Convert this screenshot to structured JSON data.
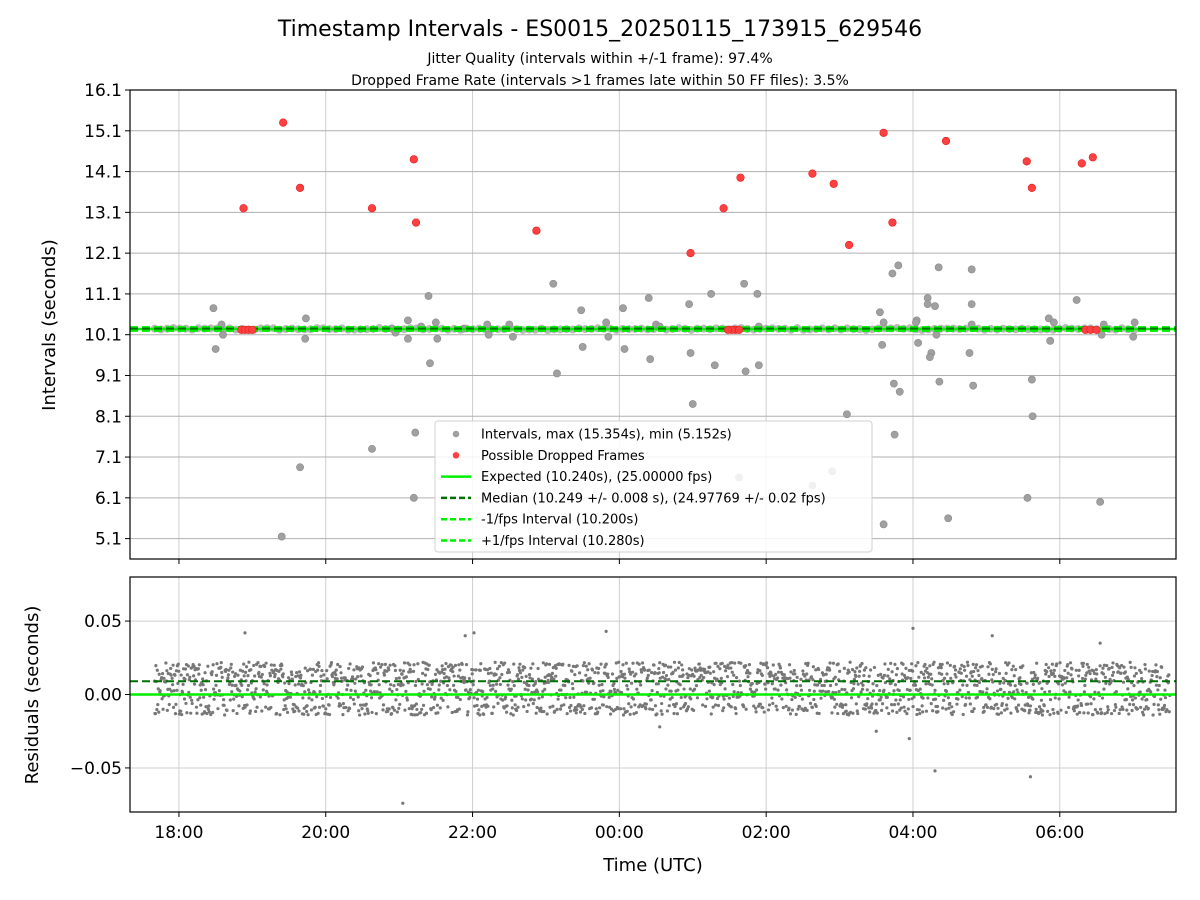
{
  "chart_data": [
    {
      "type": "scatter",
      "title": "Timestamp Intervals - ES0015_20250115_173915_629546",
      "subtitle_1": "Jitter Quality (intervals within +/-1 frame): 97.4%",
      "subtitle_2": "Dropped Frame Rate (intervals >1 frames late within 50 FF files): 3.5%",
      "ylabel": "Intervals (seconds)",
      "ylim": [
        4.6,
        16.1
      ],
      "y_ticks": [
        "5.1",
        "6.1",
        "7.1",
        "8.1",
        "9.1",
        "10.1",
        "11.1",
        "12.1",
        "13.1",
        "14.1",
        "15.1",
        "16.1"
      ],
      "grid": true,
      "legend_position": "lower-center",
      "series": [
        {
          "name": "Intervals, max (15.354s), min (5.152s)",
          "color": "#a0a0a0",
          "points": [
            [
              18.47,
              10.75
            ],
            [
              18.5,
              9.75
            ],
            [
              18.58,
              10.35
            ],
            [
              18.6,
              10.1
            ],
            [
              19.4,
              5.15
            ],
            [
              19.65,
              6.85
            ],
            [
              19.72,
              10.0
            ],
            [
              19.73,
              10.5
            ],
            [
              20.63,
              7.3
            ],
            [
              20.9,
              10.25
            ],
            [
              20.95,
              10.15
            ],
            [
              21.12,
              10.45
            ],
            [
              21.12,
              10.0
            ],
            [
              21.2,
              6.1
            ],
            [
              21.22,
              7.7
            ],
            [
              21.3,
              10.3
            ],
            [
              21.4,
              11.05
            ],
            [
              21.42,
              9.4
            ],
            [
              21.5,
              10.4
            ],
            [
              21.52,
              10.0
            ],
            [
              21.88,
              10.25
            ],
            [
              22.2,
              10.35
            ],
            [
              22.22,
              10.1
            ],
            [
              22.5,
              10.35
            ],
            [
              22.55,
              10.05
            ],
            [
              23.1,
              11.35
            ],
            [
              23.15,
              9.15
            ],
            [
              23.48,
              10.7
            ],
            [
              23.5,
              9.8
            ],
            [
              23.82,
              10.4
            ],
            [
              23.85,
              10.05
            ],
            [
              24.05,
              10.75
            ],
            [
              24.07,
              9.75
            ],
            [
              24.4,
              11.0
            ],
            [
              24.42,
              9.5
            ],
            [
              24.5,
              10.35
            ],
            [
              24.55,
              10.3
            ],
            [
              24.95,
              10.85
            ],
            [
              24.97,
              9.65
            ],
            [
              25.0,
              8.4
            ],
            [
              25.3,
              9.35
            ],
            [
              25.25,
              11.1
            ],
            [
              25.63,
              6.6
            ],
            [
              25.7,
              11.35
            ],
            [
              25.72,
              9.2
            ],
            [
              25.88,
              11.1
            ],
            [
              25.9,
              9.35
            ],
            [
              25.9,
              10.3
            ],
            [
              26.63,
              6.4
            ],
            [
              26.9,
              6.75
            ],
            [
              27.1,
              8.15
            ],
            [
              27.55,
              10.65
            ],
            [
              27.58,
              9.85
            ],
            [
              27.6,
              10.4
            ],
            [
              27.6,
              5.45
            ],
            [
              27.72,
              11.6
            ],
            [
              27.74,
              8.9
            ],
            [
              27.75,
              7.65
            ],
            [
              27.8,
              11.8
            ],
            [
              27.82,
              8.7
            ],
            [
              28.05,
              10.45
            ],
            [
              28.07,
              9.9
            ],
            [
              28.04,
              10.4
            ],
            [
              28.2,
              11.0
            ],
            [
              28.2,
              10.85
            ],
            [
              28.25,
              9.65
            ],
            [
              28.23,
              9.55
            ],
            [
              28.3,
              10.8
            ],
            [
              28.32,
              10.1
            ],
            [
              28.35,
              11.75
            ],
            [
              28.36,
              8.95
            ],
            [
              28.48,
              5.6
            ],
            [
              28.77,
              9.65
            ],
            [
              28.8,
              11.7
            ],
            [
              28.82,
              8.85
            ],
            [
              28.8,
              10.35
            ],
            [
              28.8,
              10.85
            ],
            [
              29.56,
              6.1
            ],
            [
              29.62,
              9.0
            ],
            [
              29.63,
              8.1
            ],
            [
              29.85,
              10.5
            ],
            [
              29.87,
              9.95
            ],
            [
              29.92,
              10.4
            ],
            [
              30.23,
              10.95
            ],
            [
              30.55,
              6.0
            ],
            [
              30.57,
              10.1
            ],
            [
              30.6,
              10.35
            ],
            [
              31.0,
              10.05
            ],
            [
              31.02,
              10.4
            ]
          ]
        },
        {
          "name": "Possible Dropped Frames",
          "color": "#ff4040",
          "points": [
            [
              18.88,
              13.2
            ],
            [
              18.85,
              10.22
            ],
            [
              18.9,
              10.22
            ],
            [
              18.95,
              10.22
            ],
            [
              19.0,
              10.22
            ],
            [
              19.42,
              15.3
            ],
            [
              19.65,
              13.7
            ],
            [
              20.63,
              13.2
            ],
            [
              21.2,
              14.4
            ],
            [
              21.23,
              12.85
            ],
            [
              22.87,
              12.65
            ],
            [
              24.97,
              12.1
            ],
            [
              25.42,
              13.2
            ],
            [
              25.58,
              10.22
            ],
            [
              25.63,
              10.22
            ],
            [
              25.53,
              10.22
            ],
            [
              25.48,
              10.22
            ],
            [
              25.65,
              13.95
            ],
            [
              26.63,
              14.05
            ],
            [
              26.92,
              13.8
            ],
            [
              27.13,
              12.3
            ],
            [
              27.6,
              15.05
            ],
            [
              27.72,
              12.85
            ],
            [
              28.45,
              14.85
            ],
            [
              29.55,
              14.35
            ],
            [
              29.62,
              13.7
            ],
            [
              30.3,
              14.3
            ],
            [
              30.45,
              14.45
            ],
            [
              30.35,
              10.22
            ],
            [
              30.42,
              10.22
            ],
            [
              30.5,
              10.22
            ]
          ]
        },
        {
          "name": "Expected (10.240s), (25.00000 fps)",
          "color": "#00ee00",
          "y": 10.24
        },
        {
          "name": "Median (10.249 +/- 0.008 s), (24.97769 +/- 0.02 fps)",
          "color": "#007000",
          "y": 10.249
        },
        {
          "name": "-1/fps Interval (10.200s)",
          "color": "#00ee00",
          "y": 10.2
        },
        {
          "name": "+1/fps Interval (10.280s)",
          "color": "#00ee00",
          "y": 10.28
        }
      ]
    },
    {
      "type": "scatter",
      "ylabel": "Residuals (seconds)",
      "xlabel": "Time (UTC)",
      "ylim": [
        -0.08,
        0.08
      ],
      "y_ticks": [
        "−0.05",
        "0.00",
        "0.05"
      ],
      "x_ticks": [
        "18:00",
        "20:00",
        "22:00",
        "00:00",
        "02:00",
        "04:00",
        "06:00"
      ],
      "xlim": [
        "17:20",
        "07:35"
      ],
      "grid": true,
      "series": [
        {
          "name": "Residuals",
          "color": "#777777",
          "x_range": [
            "17:40",
            "07:30"
          ],
          "levels": [
            -0.01,
            0.0,
            0.01,
            0.018
          ],
          "outliers": [
            [
              18.9,
              0.042
            ],
            [
              21.9,
              0.04
            ],
            [
              22.02,
              0.042
            ],
            [
              23.82,
              0.043
            ],
            [
              28.0,
              0.045
            ],
            [
              29.08,
              0.04
            ],
            [
              30.55,
              0.035
            ],
            [
              21.05,
              -0.074
            ],
            [
              28.3,
              -0.052
            ],
            [
              29.6,
              -0.056
            ],
            [
              27.5,
              -0.025
            ],
            [
              27.95,
              -0.03
            ],
            [
              24.55,
              -0.022
            ]
          ]
        },
        {
          "name": "Expected",
          "color": "#00ee00",
          "y": 0.0
        },
        {
          "name": "Median",
          "color": "#007000",
          "y": 0.009
        }
      ]
    }
  ]
}
